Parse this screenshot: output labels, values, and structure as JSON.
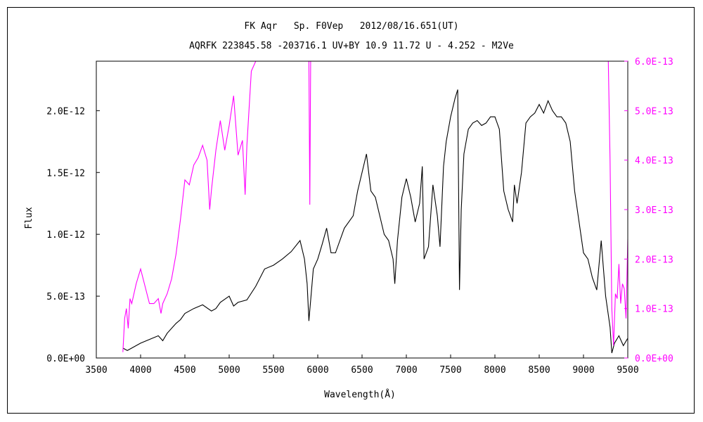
{
  "chart_data": {
    "type": "line",
    "title": "FK Aqr   Sp. F0Vep   2012/08/16.651(UT)",
    "subtitle": "AQRFK 223845.58 -203716.1 UV+BY 10.9 11.72 U - 4.252 - M2Ve",
    "xlabel": "Wavelength(Å)",
    "ylabel": "Flux",
    "xlim": [
      3500,
      9500
    ],
    "ylim_left": [
      0,
      2.4e-12
    ],
    "ylim_right": [
      0,
      6e-13
    ],
    "x_ticks": [
      "3500",
      "4000",
      "4500",
      "5000",
      "5500",
      "6000",
      "6500",
      "7000",
      "7500",
      "8000",
      "8500",
      "9000",
      "9500"
    ],
    "y_left_ticks": [
      "0.0E+00",
      "5.0E-13",
      "1.0E-12",
      "1.5E-12",
      "2.0E-12"
    ],
    "y_right_ticks": [
      "0.0E+00",
      "1.0E-13",
      "2.0E-13",
      "3.0E-13",
      "4.0E-13",
      "5.0E-13",
      "6.0E-13"
    ],
    "grid": false,
    "colors": {
      "left_series": "#000000",
      "right_series": "#ff00ff"
    },
    "series": [
      {
        "axis": "left",
        "color": "#000000",
        "x": [
          3800,
          3850,
          3900,
          3950,
          4000,
          4100,
          4200,
          4250,
          4300,
          4400,
          4450,
          4500,
          4600,
          4700,
          4800,
          4850,
          4900,
          5000,
          5050,
          5100,
          5200,
          5300,
          5400,
          5500,
          5600,
          5700,
          5800,
          5850,
          5880,
          5900,
          5950,
          6000,
          6050,
          6100,
          6150,
          6200,
          6300,
          6400,
          6450,
          6500,
          6550,
          6600,
          6650,
          6700,
          6750,
          6800,
          6850,
          6870,
          6900,
          6950,
          7000,
          7050,
          7100,
          7150,
          7180,
          7200,
          7250,
          7300,
          7350,
          7380,
          7420,
          7450,
          7500,
          7550,
          7580,
          7600,
          7620,
          7650,
          7700,
          7750,
          7800,
          7850,
          7900,
          7950,
          8000,
          8050,
          8100,
          8150,
          8200,
          8220,
          8250,
          8300,
          8350,
          8400,
          8450,
          8500,
          8550,
          8600,
          8650,
          8700,
          8750,
          8800,
          8850,
          8900,
          8950,
          9000,
          9050,
          9100,
          9150,
          9200,
          9250,
          9300,
          9320,
          9350,
          9400,
          9450,
          9500
        ],
        "y": [
          8e-14,
          6e-14,
          8e-14,
          1e-13,
          1.2e-13,
          1.5e-13,
          1.8e-13,
          1.4e-13,
          2e-13,
          2.8e-13,
          3.1e-13,
          3.6e-13,
          4e-13,
          4.3e-13,
          3.8e-13,
          4e-13,
          4.5e-13,
          5e-13,
          4.2e-13,
          4.5e-13,
          4.7e-13,
          5.8e-13,
          7.2e-13,
          7.5e-13,
          8e-13,
          8.6e-13,
          9.5e-13,
          8e-13,
          6e-13,
          3e-13,
          7.2e-13,
          8e-13,
          9.2e-13,
          1.05e-12,
          8.5e-13,
          8.5e-13,
          1.05e-12,
          1.15e-12,
          1.35e-12,
          1.5e-12,
          1.65e-12,
          1.35e-12,
          1.3e-12,
          1.15e-12,
          1e-12,
          9.5e-13,
          8e-13,
          6e-13,
          9.5e-13,
          1.3e-12,
          1.45e-12,
          1.3e-12,
          1.1e-12,
          1.25e-12,
          1.55e-12,
          8e-13,
          9e-13,
          1.4e-12,
          1.15e-12,
          9e-13,
          1.55e-12,
          1.75e-12,
          1.95e-12,
          2.1e-12,
          2.17e-12,
          5.5e-13,
          1.2e-12,
          1.65e-12,
          1.85e-12,
          1.9e-12,
          1.92e-12,
          1.88e-12,
          1.9e-12,
          1.95e-12,
          1.95e-12,
          1.85e-12,
          1.35e-12,
          1.2e-12,
          1.1e-12,
          1.4e-12,
          1.25e-12,
          1.5e-12,
          1.9e-12,
          1.95e-12,
          1.98e-12,
          2.05e-12,
          1.98e-12,
          2.08e-12,
          2e-12,
          1.95e-12,
          1.95e-12,
          1.9e-12,
          1.75e-12,
          1.35e-12,
          1.1e-12,
          8.5e-13,
          8e-13,
          6.5e-13,
          5.5e-13,
          9.5e-13,
          5e-13,
          2.5e-13,
          4e-14,
          1.2e-13,
          1.8e-13,
          1e-13,
          1.6e-13
        ]
      },
      {
        "axis": "right",
        "color": "#ff00ff",
        "x": [
          3800,
          3820,
          3840,
          3860,
          3880,
          3900,
          3950,
          4000,
          4100,
          4150,
          4200,
          4230,
          4250,
          4300,
          4350,
          4400,
          4450,
          4500,
          4550,
          4600,
          4650,
          4700,
          4750,
          4780,
          4800,
          4850,
          4900,
          4950,
          5000,
          5050,
          5100,
          5150,
          5180,
          5200,
          5250,
          5300,
          5350,
          5900,
          5910,
          5920,
          9280,
          9300,
          9320,
          9340,
          9360,
          9380,
          9400,
          9420,
          9440,
          9460,
          9480,
          9500
        ],
        "y": [
          1.2e-14,
          8e-14,
          1e-13,
          6e-14,
          1.2e-13,
          1.1e-13,
          1.5e-13,
          1.8e-13,
          1.1e-13,
          1.1e-13,
          1.2e-13,
          9e-14,
          1.1e-13,
          1.3e-13,
          1.6e-13,
          2.1e-13,
          2.8e-13,
          3.6e-13,
          3.5e-13,
          3.9e-13,
          4.05e-13,
          4.3e-13,
          4e-13,
          3e-13,
          3.4e-13,
          4.2e-13,
          4.8e-13,
          4.2e-13,
          4.7e-13,
          5.3e-13,
          4.1e-13,
          4.4e-13,
          3.3e-13,
          4.3e-13,
          5.8e-13,
          6e-13,
          6e-13,
          6e-13,
          3.1e-13,
          6e-13,
          6e-13,
          4e-13,
          1e-13,
          2.5e-14,
          1.3e-13,
          1.2e-13,
          1.9e-13,
          1.1e-13,
          1.5e-13,
          1.4e-13,
          8e-14,
          2.4e-13
        ]
      }
    ]
  }
}
